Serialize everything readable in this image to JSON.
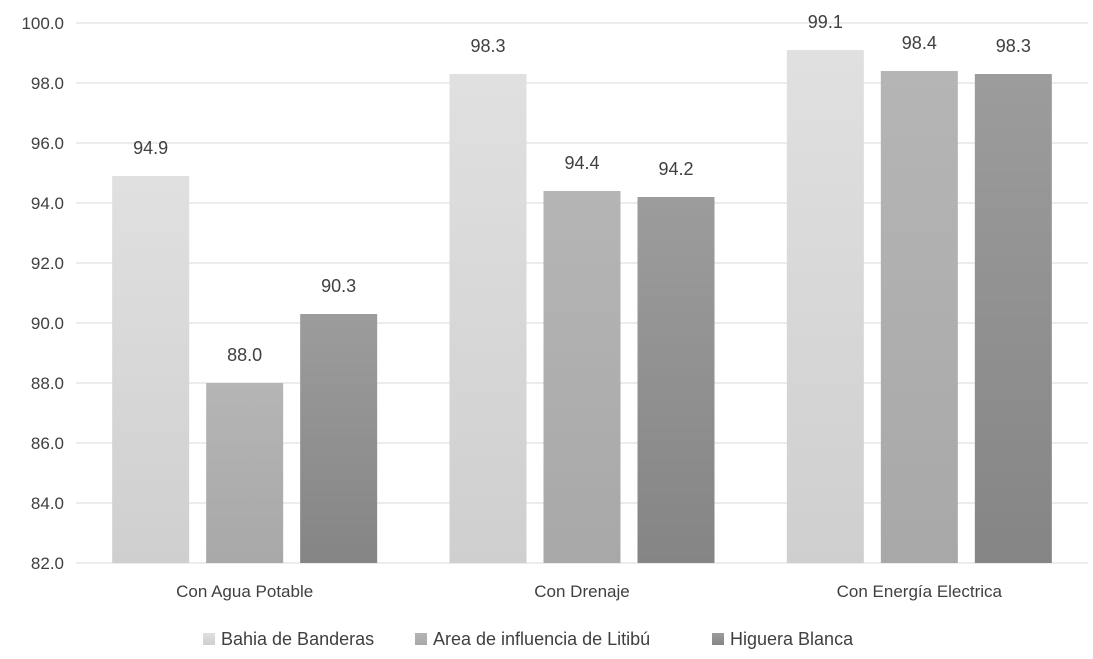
{
  "chart_data": {
    "type": "bar",
    "title": "",
    "xlabel": "",
    "ylabel": "",
    "ylim": [
      82.0,
      100.0
    ],
    "ytick_step": 2.0,
    "ytick_labels": [
      "82.0",
      "84.0",
      "86.0",
      "88.0",
      "90.0",
      "92.0",
      "94.0",
      "96.0",
      "98.0",
      "100.0"
    ],
    "grid": true,
    "legend_position": "bottom",
    "categories": [
      "Con Agua Potable",
      "Con Drenaje",
      "Con Energía Electrica"
    ],
    "series": [
      {
        "name": "Bahia de Banderas",
        "values": [
          94.9,
          98.3,
          99.1
        ],
        "labels": [
          "94.9",
          "98.3",
          "99.1"
        ],
        "color": "#e0e0e0",
        "color_bottom": "#cfcfcf"
      },
      {
        "name": "Area de influencia de Litibú",
        "values": [
          88.0,
          94.4,
          98.4
        ],
        "labels": [
          "88.0",
          "94.4",
          "98.4"
        ],
        "color": "#b5b5b5",
        "color_bottom": "#a8a8a8"
      },
      {
        "name": "Higuera Blanca",
        "values": [
          90.3,
          94.2,
          98.3
        ],
        "labels": [
          "90.3",
          "94.2",
          "98.3"
        ],
        "color": "#9c9c9c",
        "color_bottom": "#858585"
      }
    ]
  }
}
